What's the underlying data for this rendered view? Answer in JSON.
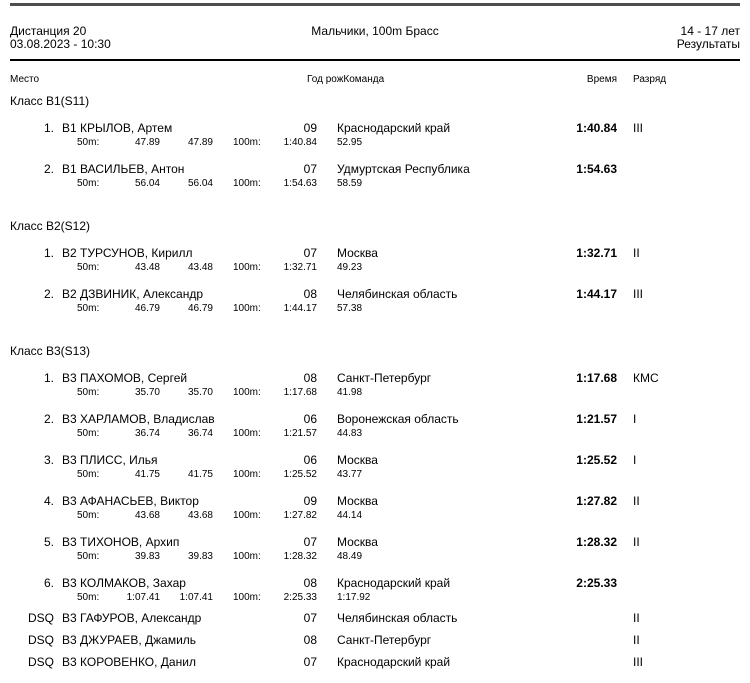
{
  "header": {
    "event_number": "Дистанция 20",
    "datetime": "03.08.2023 - 10:30",
    "event_title": "Мальчики, 100m Брасс",
    "age_group": "14 - 17 лет",
    "results_label": "Результаты"
  },
  "captions": {
    "place": "Место",
    "birth_year": "Год рож",
    "team": "Команда",
    "time": "Время",
    "rank": "Разряд"
  },
  "labels": {
    "split_50": "50m:",
    "split_100": "100m:"
  },
  "sections": [
    {
      "title": "Класс B1(S11)",
      "entries": [
        {
          "place": "1.",
          "name": "B1 КРЫЛОВ, Артем",
          "year": "09",
          "team": "Краснодарский край",
          "time": "1:40.84",
          "rank": "III",
          "splits": {
            "s1": "47.89",
            "s2": "47.89",
            "total": "1:40.84",
            "back": "52.95"
          }
        },
        {
          "place": "2.",
          "name": "B1 ВАСИЛЬЕВ, Антон",
          "year": "07",
          "team": "Удмуртская Республика",
          "time": "1:54.63",
          "rank": "",
          "splits": {
            "s1": "56.04",
            "s2": "56.04",
            "total": "1:54.63",
            "back": "58.59"
          }
        }
      ],
      "dsq": []
    },
    {
      "title": "Класс B2(S12)",
      "entries": [
        {
          "place": "1.",
          "name": "B2 ТУРСУНОВ, Кирилл",
          "year": "07",
          "team": "Москва",
          "time": "1:32.71",
          "rank": "II",
          "splits": {
            "s1": "43.48",
            "s2": "43.48",
            "total": "1:32.71",
            "back": "49.23"
          }
        },
        {
          "place": "2.",
          "name": "B2 ДЗВИНИК, Александр",
          "year": "08",
          "team": "Челябинская область",
          "time": "1:44.17",
          "rank": "III",
          "splits": {
            "s1": "46.79",
            "s2": "46.79",
            "total": "1:44.17",
            "back": "57.38"
          }
        }
      ],
      "dsq": []
    },
    {
      "title": "Класс B3(S13)",
      "entries": [
        {
          "place": "1.",
          "name": "B3 ПАХОМОВ, Сергей",
          "year": "08",
          "team": "Санкт-Петербург",
          "time": "1:17.68",
          "rank": "КМС",
          "splits": {
            "s1": "35.70",
            "s2": "35.70",
            "total": "1:17.68",
            "back": "41.98"
          }
        },
        {
          "place": "2.",
          "name": "B3 ХАРЛАМОВ, Владислав",
          "year": "06",
          "team": "Воронежская область",
          "time": "1:21.57",
          "rank": "I",
          "splits": {
            "s1": "36.74",
            "s2": "36.74",
            "total": "1:21.57",
            "back": "44.83"
          }
        },
        {
          "place": "3.",
          "name": "B3 ПЛИСС, Илья",
          "year": "06",
          "team": "Москва",
          "time": "1:25.52",
          "rank": "I",
          "splits": {
            "s1": "41.75",
            "s2": "41.75",
            "total": "1:25.52",
            "back": "43.77"
          }
        },
        {
          "place": "4.",
          "name": "B3 АФАНАСЬЕВ, Виктор",
          "year": "09",
          "team": "Москва",
          "time": "1:27.82",
          "rank": "II",
          "splits": {
            "s1": "43.68",
            "s2": "43.68",
            "total": "1:27.82",
            "back": "44.14"
          }
        },
        {
          "place": "5.",
          "name": "B3 ТИХОНОВ, Архип",
          "year": "07",
          "team": "Москва",
          "time": "1:28.32",
          "rank": "II",
          "splits": {
            "s1": "39.83",
            "s2": "39.83",
            "total": "1:28.32",
            "back": "48.49"
          }
        },
        {
          "place": "6.",
          "name": "B3 КОЛМАКОВ, Захар",
          "year": "08",
          "team": "Краснодарский край",
          "time": "2:25.33",
          "rank": "",
          "splits": {
            "s1": "1:07.41",
            "s2": "1:07.41",
            "total": "2:25.33",
            "back": "1:17.92"
          }
        }
      ],
      "dsq": [
        {
          "place": "DSQ",
          "name": "B3 ГАФУРОВ, Александр",
          "year": "07",
          "team": "Челябинская область",
          "rank": "II"
        },
        {
          "place": "DSQ",
          "name": "B3 ДЖУРАЕВ, Джамиль",
          "year": "08",
          "team": "Санкт-Петербург",
          "rank": "II"
        },
        {
          "place": "DSQ",
          "name": "B3 КОРОВЕНКО, Данил",
          "year": "07",
          "team": "Краснодарский край",
          "rank": "III"
        }
      ]
    }
  ],
  "colors": {
    "background": "#ffffff",
    "text": "#000000",
    "rule_top": "#4d4d4d",
    "rule_mid": "#000000"
  }
}
